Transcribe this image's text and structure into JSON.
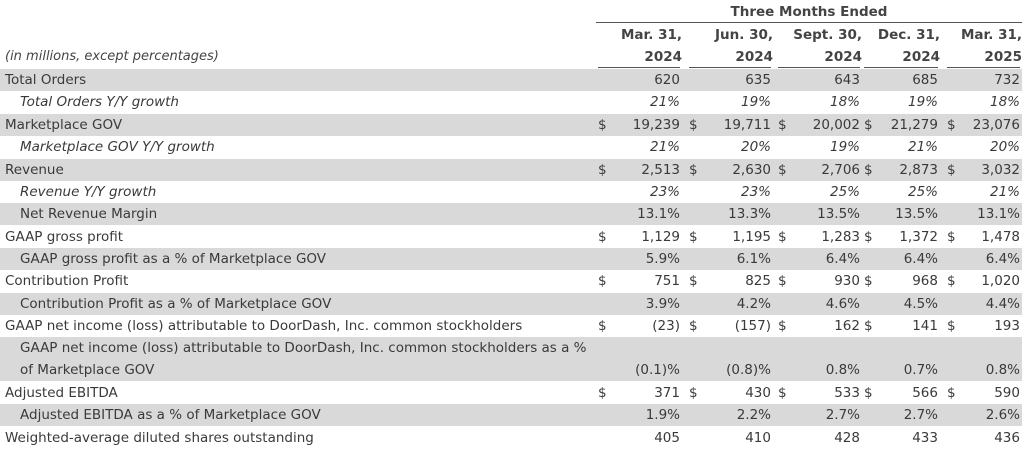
{
  "header": {
    "group_title": "Three Months Ended",
    "unit_note": "(in millions, except percentages)",
    "columns": [
      {
        "line1": "Mar. 31,",
        "line2": "2024"
      },
      {
        "line1": "Jun. 30,",
        "line2": "2024"
      },
      {
        "line1": "Sept. 30,",
        "line2": "2024"
      },
      {
        "line1": "Dec. 31,",
        "line2": "2024"
      },
      {
        "line1": "Mar. 31,",
        "line2": "2025"
      }
    ]
  },
  "rows": [
    {
      "label": "Total Orders",
      "cur": [
        "",
        "",
        "",
        "",
        ""
      ],
      "vals": [
        "620",
        "635",
        "643",
        "685",
        "732"
      ]
    },
    {
      "label": "Total Orders Y/Y growth",
      "cur": [
        "",
        "",
        "",
        "",
        ""
      ],
      "vals": [
        "21%",
        "19%",
        "18%",
        "19%",
        "18%"
      ]
    },
    {
      "label": "Marketplace GOV",
      "cur": [
        "$",
        "$",
        "$",
        "$",
        "$"
      ],
      "vals": [
        "19,239",
        "19,711",
        "20,002",
        "21,279",
        "23,076"
      ]
    },
    {
      "label": "Marketplace GOV Y/Y growth",
      "cur": [
        "",
        "",
        "",
        "",
        ""
      ],
      "vals": [
        "21%",
        "20%",
        "19%",
        "21%",
        "20%"
      ]
    },
    {
      "label": "Revenue",
      "cur": [
        "$",
        "$",
        "$",
        "$",
        "$"
      ],
      "vals": [
        "2,513",
        "2,630",
        "2,706",
        "2,873",
        "3,032"
      ]
    },
    {
      "label": "Revenue Y/Y growth",
      "cur": [
        "",
        "",
        "",
        "",
        ""
      ],
      "vals": [
        "23%",
        "23%",
        "25%",
        "25%",
        "21%"
      ]
    },
    {
      "label": "Net Revenue Margin",
      "cur": [
        "",
        "",
        "",
        "",
        ""
      ],
      "vals": [
        "13.1%",
        "13.3%",
        "13.5%",
        "13.5%",
        "13.1%"
      ]
    },
    {
      "label": "GAAP gross profit",
      "cur": [
        "$",
        "$",
        "$",
        "$",
        "$"
      ],
      "vals": [
        "1,129",
        "1,195",
        "1,283",
        "1,372",
        "1,478"
      ]
    },
    {
      "label": "GAAP gross profit as a % of Marketplace GOV",
      "cur": [
        "",
        "",
        "",
        "",
        ""
      ],
      "vals": [
        "5.9%",
        "6.1%",
        "6.4%",
        "6.4%",
        "6.4%"
      ]
    },
    {
      "label": "Contribution Profit",
      "cur": [
        "$",
        "$",
        "$",
        "$",
        "$"
      ],
      "vals": [
        "751",
        "825",
        "930",
        "968",
        "1,020"
      ]
    },
    {
      "label": "Contribution Profit as a % of Marketplace GOV",
      "cur": [
        "",
        "",
        "",
        "",
        ""
      ],
      "vals": [
        "3.9%",
        "4.2%",
        "4.6%",
        "4.5%",
        "4.4%"
      ]
    },
    {
      "label": "GAAP net income (loss) attributable to DoorDash, Inc. common stockholders",
      "cur": [
        "$",
        "$",
        "$",
        "$",
        "$"
      ],
      "vals": [
        "(23)",
        "(157)",
        "162",
        "141",
        "193"
      ]
    },
    {
      "label": "GAAP net income (loss) attributable to DoorDash, Inc. common stockholders as a % of Marketplace GOV",
      "cur": [
        "",
        "",
        "",
        "",
        ""
      ],
      "vals": [
        "(0.1)%",
        "(0.8)%",
        "0.8%",
        "0.7%",
        "0.8%"
      ]
    },
    {
      "label": "Adjusted EBITDA",
      "cur": [
        "$",
        "$",
        "$",
        "$",
        "$"
      ],
      "vals": [
        "371",
        "430",
        "533",
        "566",
        "590"
      ]
    },
    {
      "label": "Adjusted EBITDA as a % of Marketplace GOV",
      "cur": [
        "",
        "",
        "",
        "",
        ""
      ],
      "vals": [
        "1.9%",
        "2.2%",
        "2.7%",
        "2.7%",
        "2.6%"
      ]
    },
    {
      "label": "Weighted-average diluted shares outstanding",
      "cur": [
        "",
        "",
        "",
        "",
        ""
      ],
      "vals": [
        "405",
        "410",
        "428",
        "433",
        "436"
      ]
    }
  ]
}
